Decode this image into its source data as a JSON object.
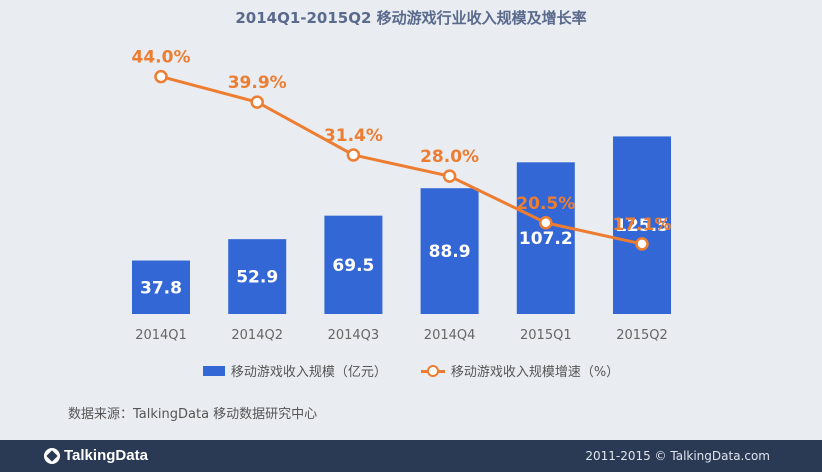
{
  "chart_data": {
    "type": "bar",
    "title": "2014Q1-2015Q2 移动游戏行业收入规模及增长率",
    "categories": [
      "2014Q1",
      "2014Q2",
      "2014Q3",
      "2014Q4",
      "2015Q1",
      "2015Q2"
    ],
    "series": [
      {
        "name": "移动游戏收入规模（亿元）",
        "type": "bar",
        "values": [
          37.8,
          52.9,
          69.5,
          88.9,
          107.2,
          125.5
        ],
        "labels": [
          "37.8",
          "52.9",
          "69.5",
          "88.9",
          "107.2",
          "125.5"
        ],
        "color": "#3467d6"
      },
      {
        "name": "移动游戏收入规模增速（%）",
        "type": "line",
        "values": [
          44.0,
          39.9,
          31.4,
          28.0,
          20.5,
          17.1
        ],
        "labels": [
          "44.0%",
          "39.9%",
          "31.4%",
          "28.0%",
          "20.5%",
          "17.1%"
        ],
        "color": "#ed7d31"
      }
    ],
    "legend_position": "bottom",
    "grid": false
  },
  "source_text": "数据来源：TalkingData 移动数据研究中心",
  "footer": {
    "logo_text": "TalkingData",
    "copyright": "2011-2015 © TalkingData.com"
  }
}
